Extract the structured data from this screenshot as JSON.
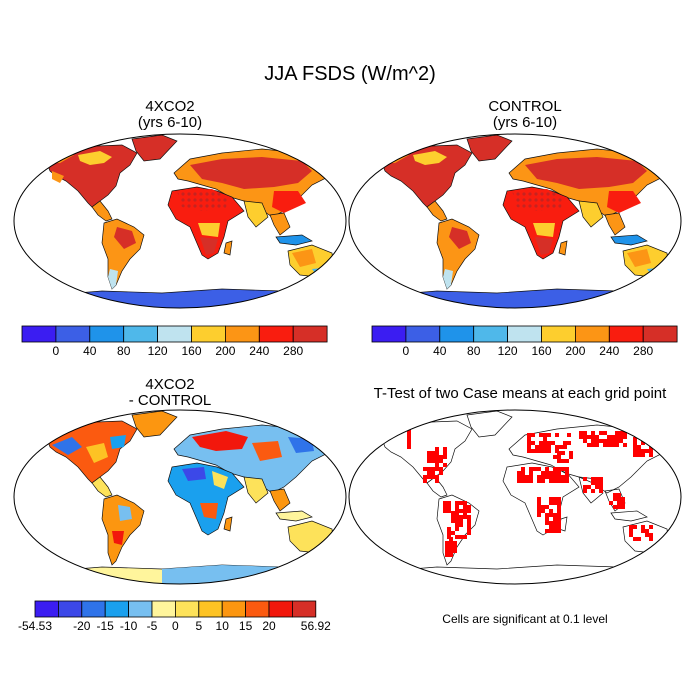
{
  "figure": {
    "title": "JJA FSDS (W/m^2)",
    "footnote": "Cells are significant at 0.1 level"
  },
  "panels": {
    "p1": {
      "title_line1": "4XCO2",
      "title_line2": "(yrs 6-10)"
    },
    "p2": {
      "title_line1": "CONTROL",
      "title_line2": "(yrs 6-10)"
    },
    "p3": {
      "title_line1": "4XCO2",
      "title_line2": "- CONTROL"
    },
    "p4": {
      "title_line1": "T-Test of two Case means at each grid point"
    }
  },
  "colorbars": {
    "absolute": {
      "colors": [
        "#3b1df2",
        "#3c5fe6",
        "#1f93ea",
        "#4fb8ea",
        "#bfe3ef",
        "#fdce2e",
        "#fc9515",
        "#f91d0f",
        "#d62f27"
      ],
      "labels": [
        "0",
        "40",
        "80",
        "120",
        "160",
        "200",
        "240",
        "280"
      ]
    },
    "difference": {
      "colors": [
        "#3b1df2",
        "#3c48e8",
        "#2f73e9",
        "#1aa0ee",
        "#77bff0",
        "#fff59c",
        "#fde25a",
        "#fdc324",
        "#fc9610",
        "#fb5a10",
        "#f2170c",
        "#d62f27"
      ],
      "labels": [
        "-54.53",
        "-20",
        "-15",
        "-10",
        "-5",
        "0",
        "5",
        "10",
        "15",
        "20",
        "56.92"
      ]
    },
    "significance_color": "#ff0000"
  }
}
